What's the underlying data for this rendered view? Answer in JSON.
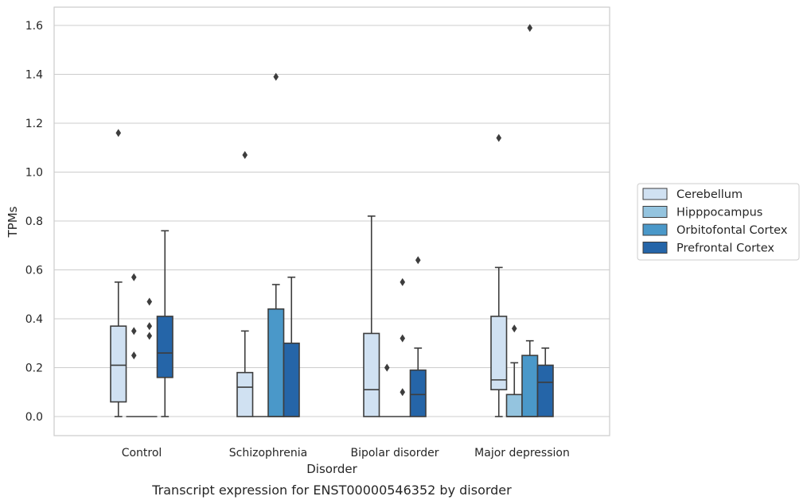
{
  "chart_data": {
    "type": "box",
    "title": "",
    "caption": "Transcript expression for ENST00000546352 by disorder",
    "xlabel": "Disorder",
    "ylabel": "TPMs",
    "ylim": [
      -0.08,
      1.67
    ],
    "yticks": [
      0.0,
      0.2,
      0.4,
      0.6,
      0.8,
      1.0,
      1.2,
      1.4,
      1.6
    ],
    "ytick_labels": [
      "0.0",
      "0.2",
      "0.4",
      "0.6",
      "0.8",
      "1.0",
      "1.2",
      "1.4",
      "1.6"
    ],
    "grid": "horizontal",
    "legend_position": "right",
    "categories": [
      "Control",
      "Schizophrenia",
      "Bipolar disorder",
      "Major depression"
    ],
    "series": [
      {
        "name": "Cerebellum",
        "color": "#d0e1f2",
        "boxes": [
          {
            "whislo": 0.0,
            "q1": 0.06,
            "med": 0.21,
            "q3": 0.37,
            "whishi": 0.55,
            "fliers": [
              1.16
            ]
          },
          {
            "whislo": 0.0,
            "q1": 0.0,
            "med": 0.12,
            "q3": 0.18,
            "whishi": 0.35,
            "fliers": [
              1.07
            ]
          },
          {
            "whislo": 0.0,
            "q1": 0.0,
            "med": 0.11,
            "q3": 0.34,
            "whishi": 0.82,
            "fliers": []
          },
          {
            "whislo": 0.0,
            "q1": 0.11,
            "med": 0.15,
            "q3": 0.41,
            "whishi": 0.61,
            "fliers": [
              1.14
            ]
          }
        ]
      },
      {
        "name": "Hipppocampus",
        "color": "#94c4df",
        "boxes": [
          {
            "whislo": 0.0,
            "q1": 0.0,
            "med": 0.0,
            "q3": 0.0,
            "whishi": 0.0,
            "fliers": [
              0.57,
              0.35,
              0.25
            ]
          },
          {
            "whislo": 0.0,
            "q1": 0.0,
            "med": 0.0,
            "q3": 0.0,
            "whishi": 0.0,
            "fliers": []
          },
          {
            "whislo": 0.0,
            "q1": 0.0,
            "med": 0.0,
            "q3": 0.0,
            "whishi": 0.0,
            "fliers": [
              0.2
            ]
          },
          {
            "whislo": 0.0,
            "q1": 0.0,
            "med": 0.0,
            "q3": 0.09,
            "whishi": 0.22,
            "fliers": [
              0.36
            ]
          }
        ]
      },
      {
        "name": "Orbitofontal Cortex",
        "color": "#4a98c9",
        "boxes": [
          {
            "whislo": 0.0,
            "q1": 0.0,
            "med": 0.0,
            "q3": 0.0,
            "whishi": 0.0,
            "fliers": [
              0.47,
              0.37,
              0.33
            ]
          },
          {
            "whislo": 0.0,
            "q1": 0.0,
            "med": 0.0,
            "q3": 0.44,
            "whishi": 0.54,
            "fliers": [
              1.39
            ]
          },
          {
            "whislo": 0.0,
            "q1": 0.0,
            "med": 0.0,
            "q3": 0.0,
            "whishi": 0.0,
            "fliers": [
              0.55,
              0.32,
              0.1
            ]
          },
          {
            "whislo": 0.0,
            "q1": 0.0,
            "med": 0.0,
            "q3": 0.25,
            "whishi": 0.31,
            "fliers": [
              1.59
            ]
          }
        ]
      },
      {
        "name": "Prefrontal Cortex",
        "color": "#2565a8",
        "boxes": [
          {
            "whislo": 0.0,
            "q1": 0.16,
            "med": 0.26,
            "q3": 0.41,
            "whishi": 0.76,
            "fliers": []
          },
          {
            "whislo": 0.0,
            "q1": 0.0,
            "med": 0.0,
            "q3": 0.3,
            "whishi": 0.57,
            "fliers": []
          },
          {
            "whislo": 0.0,
            "q1": 0.0,
            "med": 0.09,
            "q3": 0.19,
            "whishi": 0.28,
            "fliers": [
              0.64
            ]
          },
          {
            "whislo": 0.0,
            "q1": 0.0,
            "med": 0.14,
            "q3": 0.21,
            "whishi": 0.28,
            "fliers": []
          }
        ]
      }
    ]
  }
}
